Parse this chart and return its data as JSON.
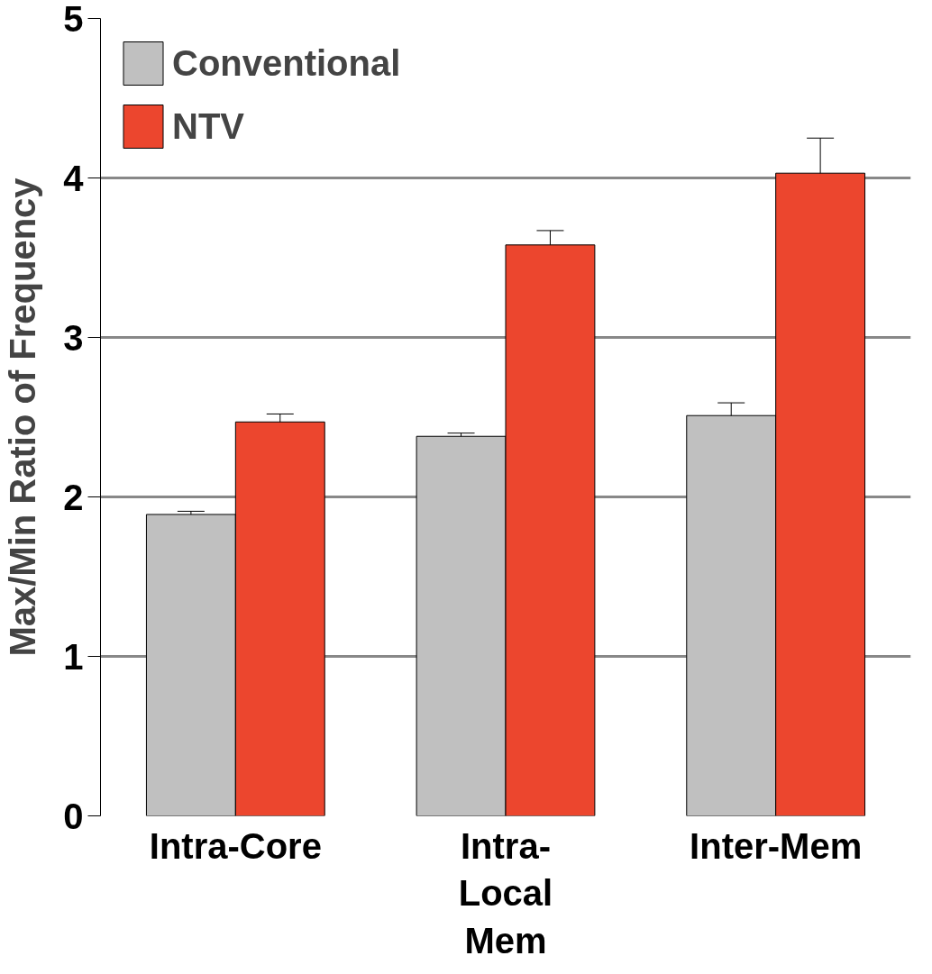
{
  "chart_data": {
    "type": "bar",
    "ylabel": "Max/Min Ratio of Frequency",
    "categories": [
      "Intra-Core",
      "Intra-Local Mem",
      "Inter-Mem"
    ],
    "series": [
      {
        "name": "Conventional",
        "color": "#c0c0c0",
        "values": [
          1.89,
          2.38,
          2.51
        ],
        "errors": [
          0.02,
          0.02,
          0.08
        ]
      },
      {
        "name": "NTV",
        "color": "#ec462e",
        "values": [
          2.47,
          3.58,
          4.03
        ],
        "errors": [
          0.05,
          0.09,
          0.22
        ]
      }
    ],
    "ylim": [
      0,
      5
    ],
    "yticks": [
      0,
      1,
      2,
      3,
      4,
      5
    ],
    "grid": "y",
    "legend": "top left"
  }
}
